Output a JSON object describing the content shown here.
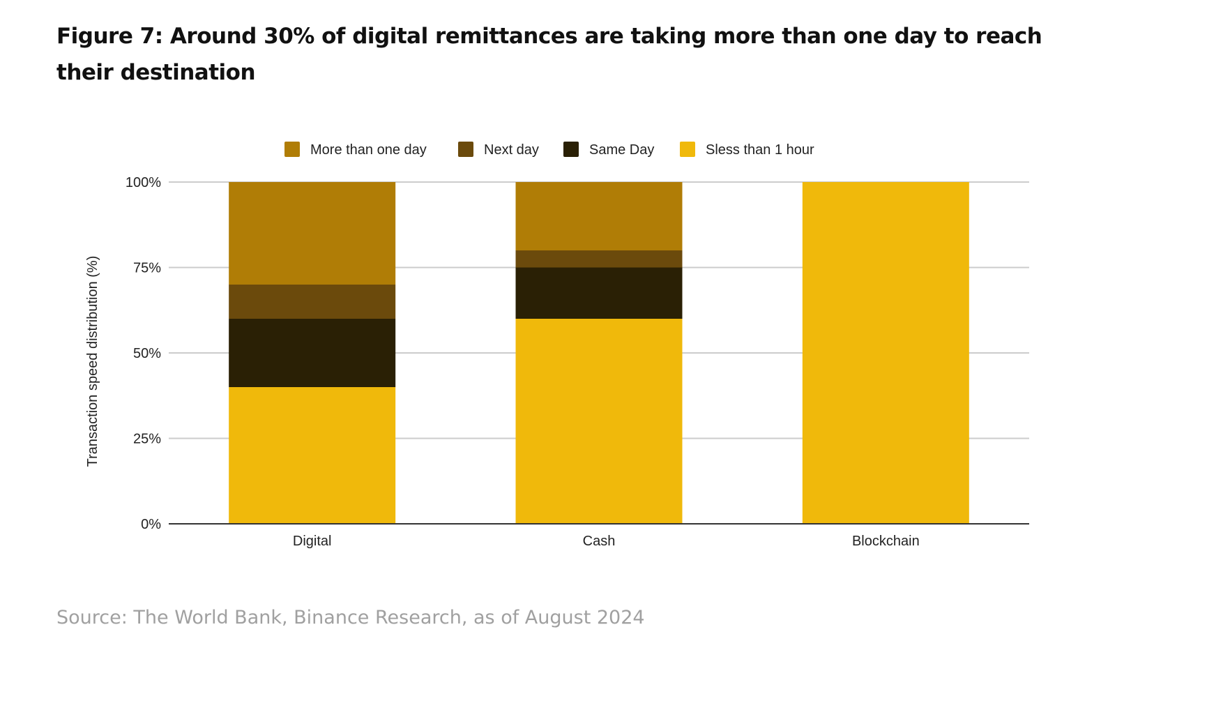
{
  "title": "Figure 7: Around 30% of digital remittances are taking more than one day to reach their destination",
  "source": "Source: The World Bank, Binance Research, as of August 2024",
  "chart_data": {
    "type": "bar",
    "stacked": true,
    "categories": [
      "Digital",
      "Cash",
      "Blockchain"
    ],
    "series": [
      {
        "name": "Sless than 1 hour",
        "color": "#F0B90B",
        "values": [
          40,
          60,
          100
        ]
      },
      {
        "name": "Same Day",
        "color": "#2A2005",
        "values": [
          20,
          15,
          0
        ]
      },
      {
        "name": "Next day",
        "color": "#6B4A0C",
        "values": [
          10,
          5,
          0
        ]
      },
      {
        "name": "More than one day",
        "color": "#B07D06",
        "values": [
          30,
          20,
          0
        ]
      }
    ],
    "legend_order": [
      "More than one day",
      "Next day",
      "Same Day",
      "Sless than 1 hour"
    ],
    "legend_position": "top",
    "ylabel": "Transaction speed distribution (%)",
    "xlabel": "",
    "ylim": [
      0,
      100
    ],
    "yticks": [
      "0%",
      "25%",
      "50%",
      "75%",
      "100%"
    ],
    "grid": true
  }
}
